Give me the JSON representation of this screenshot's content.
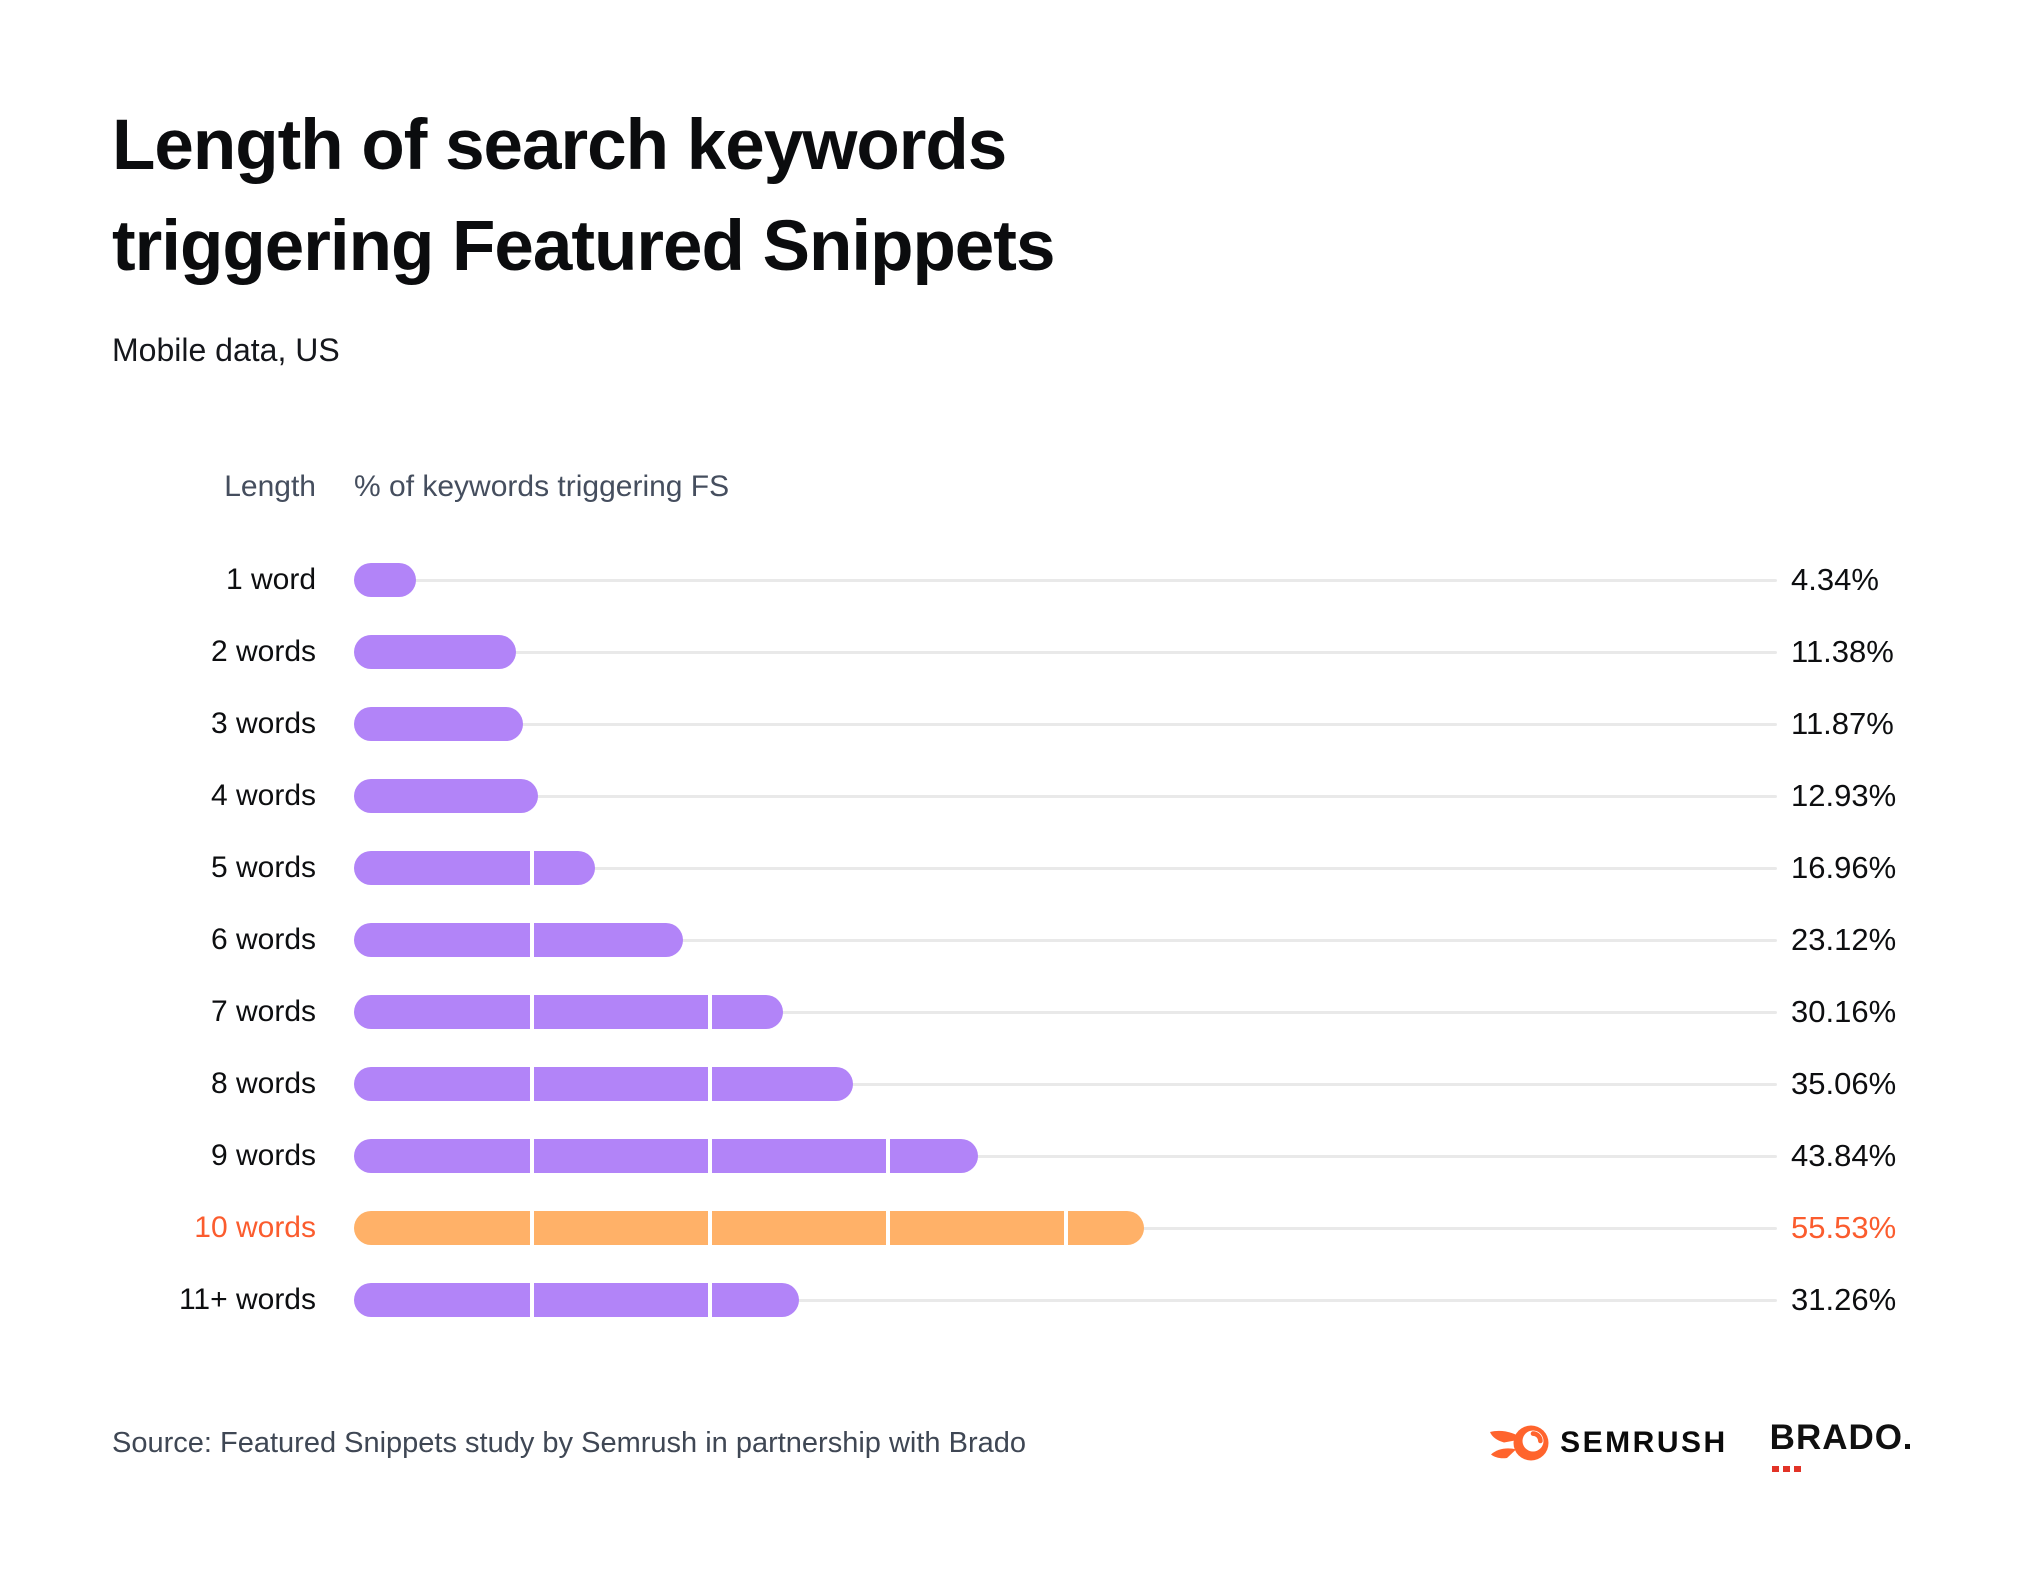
{
  "title": {
    "line1": "Length of search keywords",
    "line2": "triggering Featured Snippets"
  },
  "subtitle": "Mobile data, US",
  "columns": {
    "length_header": "Length",
    "value_header": "% of keywords triggering FS"
  },
  "chart_data": {
    "type": "bar",
    "orientation": "horizontal",
    "title": "Length of search keywords triggering Featured Snippets",
    "subtitle": "Mobile data, US",
    "categories": [
      "1 word",
      "2 words",
      "3 words",
      "4 words",
      "5 words",
      "6 words",
      "7 words",
      "8 words",
      "9 words",
      "10 words",
      "11+ words"
    ],
    "values": [
      4.34,
      11.38,
      11.87,
      12.93,
      16.96,
      23.12,
      30.16,
      35.06,
      43.84,
      55.53,
      31.26
    ],
    "value_labels": [
      "4.34%",
      "11.38%",
      "11.87%",
      "12.93%",
      "16.96%",
      "23.12%",
      "30.16%",
      "35.06%",
      "43.84%",
      "55.53%",
      "31.26%"
    ],
    "xlim": [
      0,
      100
    ],
    "highlight_category": "10 words",
    "segment_interval_pct": 12.5,
    "grid": false,
    "legend": false
  },
  "colors": {
    "bar_default": "#b284f8",
    "bar_highlight": "#ffb168",
    "highlight_text": "#fb5c2e",
    "track": "#e9e9e9",
    "text_primary": "#0d0e10",
    "text_secondary": "#454e5e",
    "semrush_orange": "#ff642d",
    "brado_red": "#e23327"
  },
  "footer": {
    "source": "Source: Featured Snippets study by Semrush in partnership with Brado",
    "semrush_logo_text": "SEMRUSH",
    "brado_logo_text": "BRADO"
  }
}
